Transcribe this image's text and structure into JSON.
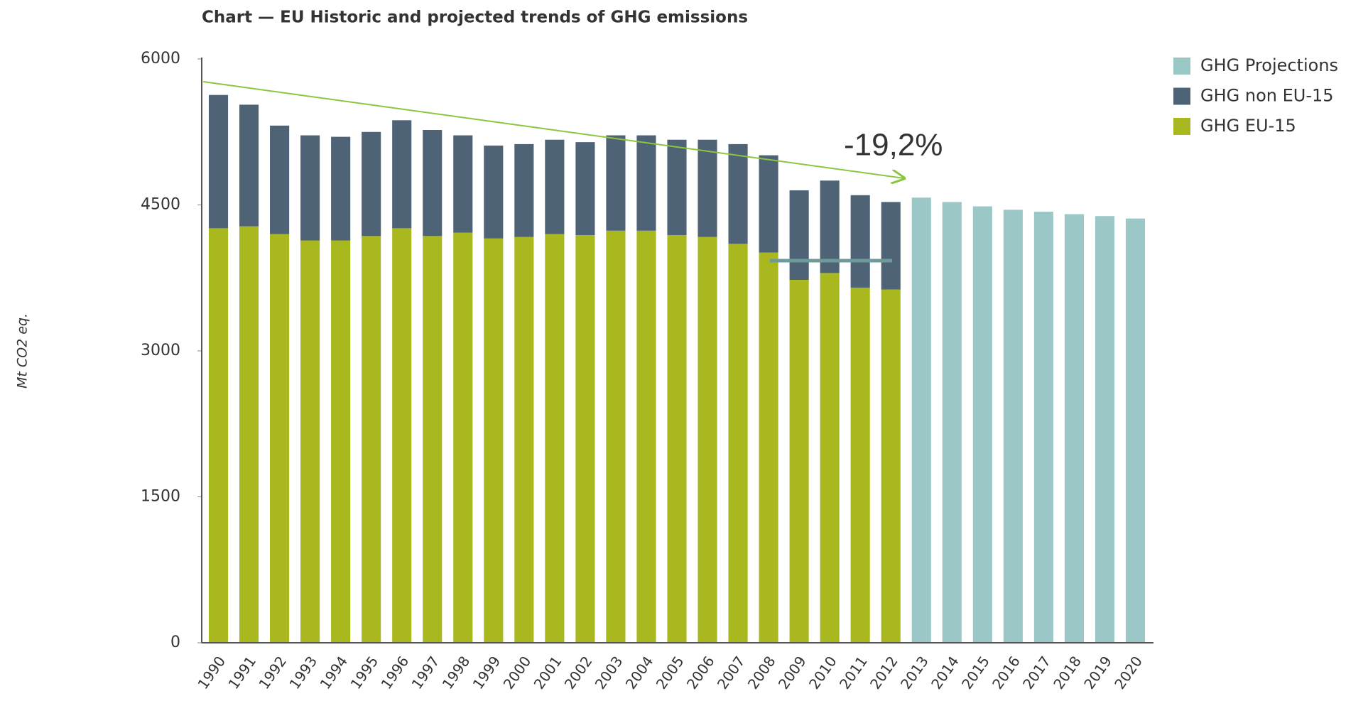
{
  "chart_data": {
    "type": "stacked_bar",
    "title": "Chart — EU Historic and projected trends of GHG emissions",
    "y_label": "Mt CO2 eq.",
    "categories": [
      "1990",
      "1991",
      "1992",
      "1993",
      "1994",
      "1995",
      "1996",
      "1997",
      "1998",
      "1999",
      "2000",
      "2001",
      "2002",
      "2003",
      "2004",
      "2005",
      "2006",
      "2007",
      "2008",
      "2009",
      "2010",
      "2011",
      "2012",
      "2013",
      "2014",
      "2015",
      "2016",
      "2017",
      "2018",
      "2019",
      "2020"
    ],
    "series": [
      {
        "name": "GHG EU-15",
        "color": "#aab81f",
        "values": [
          4260,
          4280,
          4200,
          4135,
          4135,
          4180,
          4260,
          4180,
          4215,
          4155,
          4170,
          4200,
          4190,
          4235,
          4235,
          4190,
          4170,
          4100,
          4010,
          3730,
          3800,
          3650,
          3630,
          null,
          null,
          null,
          null,
          null,
          null,
          null,
          null
        ]
      },
      {
        "name": "GHG non EU-15",
        "color": "#4f6376",
        "values": [
          1370,
          1250,
          1115,
          1080,
          1065,
          1070,
          1110,
          1090,
          1000,
          955,
          955,
          970,
          955,
          980,
          980,
          980,
          1000,
          1025,
          1000,
          920,
          950,
          950,
          900,
          null,
          null,
          null,
          null,
          null,
          null,
          null,
          null
        ]
      },
      {
        "name": "GHG Projections",
        "color": "#9cc7c7",
        "values": [
          null,
          null,
          null,
          null,
          null,
          null,
          null,
          null,
          null,
          null,
          null,
          null,
          null,
          null,
          null,
          null,
          null,
          null,
          null,
          null,
          null,
          null,
          null,
          4575,
          4530,
          4485,
          4450,
          4430,
          4405,
          4385,
          4360
        ]
      }
    ],
    "ylim": [
      0,
      6000
    ],
    "yticks": [
      0,
      1500,
      3000,
      4500,
      6000
    ],
    "grid": false,
    "legend": "top-right",
    "annotations": [
      {
        "text": "-19,2%"
      }
    ]
  }
}
